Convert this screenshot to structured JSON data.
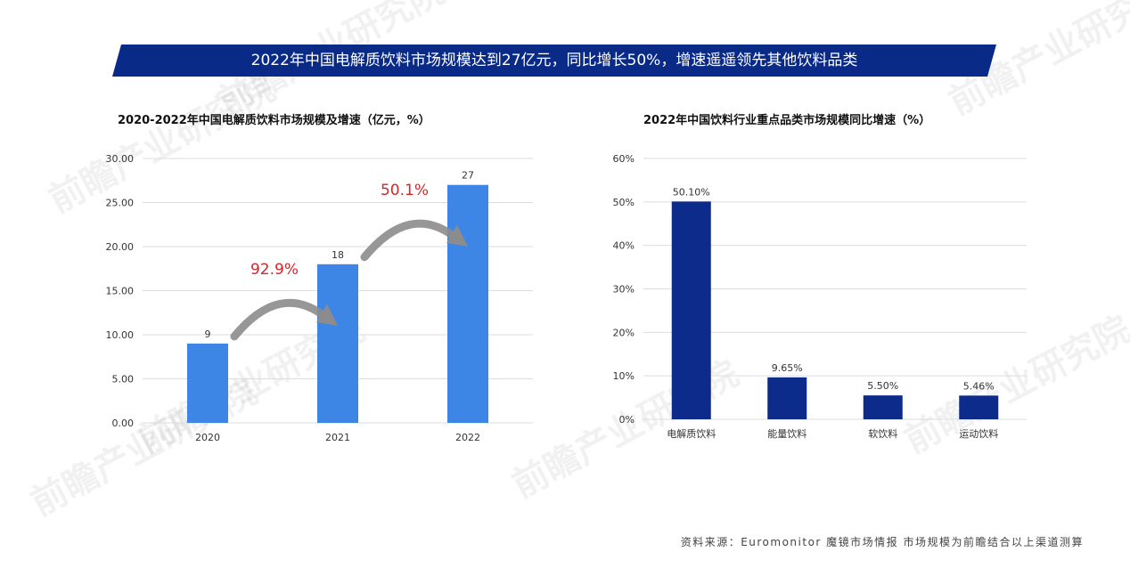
{
  "banner": {
    "title": "2022年中国电解质饮料市场规模达到27亿元，同比增长50%，增速遥遥领先其他饮料品类"
  },
  "watermark": {
    "text": "前瞻产业研究院"
  },
  "colors": {
    "banner": "#0a2a87",
    "left_bar": "#3e86e6",
    "right_bar": "#0c2b8a",
    "growth_label": "#d6242a",
    "arrow": "#8c8c8c",
    "grid": "#dddddd"
  },
  "chart_data": [
    {
      "type": "bar",
      "title": "2020-2022年中国电解质饮料市场规模及增速（亿元，%）",
      "categories": [
        "2020",
        "2021",
        "2022"
      ],
      "values": [
        9,
        18,
        27
      ],
      "data_labels": [
        "9",
        "18",
        "27"
      ],
      "ylim": [
        0,
        30
      ],
      "y_ticks": [
        "0.00",
        "5.00",
        "10.00",
        "15.00",
        "20.00",
        "25.00",
        "30.00"
      ],
      "grid": true,
      "annotations": [
        {
          "text": "92.9%",
          "from": "2020",
          "to": "2021"
        },
        {
          "text": "50.1%",
          "from": "2021",
          "to": "2022"
        }
      ]
    },
    {
      "type": "bar",
      "title": "2022年中国饮料行业重点品类市场规模同比增速（%）",
      "categories": [
        "电解质饮料",
        "能量饮料",
        "软饮料",
        "运动饮料"
      ],
      "values": [
        50.1,
        9.65,
        5.5,
        5.46
      ],
      "data_labels": [
        "50.10%",
        "9.65%",
        "5.50%",
        "5.46%"
      ],
      "ylim": [
        0,
        60
      ],
      "y_ticks": [
        "0%",
        "10%",
        "20%",
        "30%",
        "40%",
        "50%",
        "60%"
      ],
      "grid": true
    }
  ],
  "footer": {
    "source": "资料来源：Euromonitor 魔镜市场情报 市场规模为前瞻结合以上渠道测算"
  }
}
